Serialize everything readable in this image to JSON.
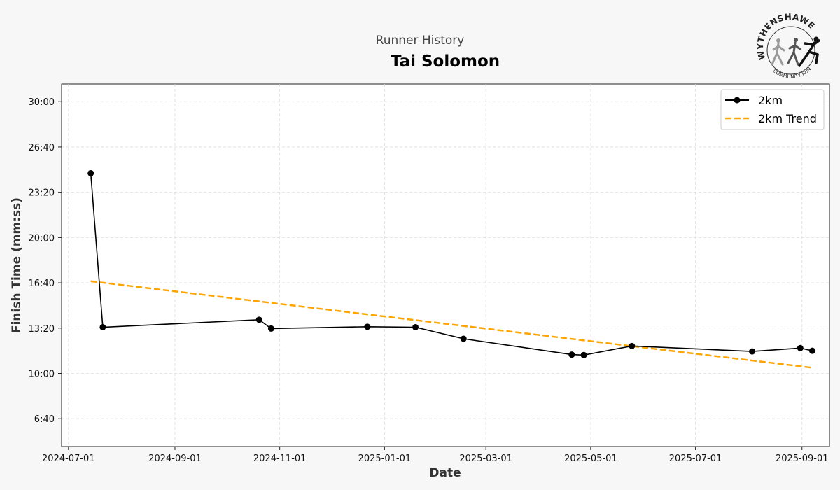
{
  "suptitle": "Runner History",
  "title": "Tai Solomon",
  "logo": {
    "name": "WYTHENSHAWE",
    "subtitle": "COMMUNITY RUN"
  },
  "chart_data": {
    "type": "line",
    "xlabel": "Date",
    "ylabel": "Finish Time (mm:ss)",
    "x_ticks": [
      "2024-07-01",
      "2024-09-01",
      "2024-11-01",
      "2025-01-01",
      "2025-03-01",
      "2025-05-01",
      "2025-07-01",
      "2025-09-01"
    ],
    "y_ticks": [
      "6:40",
      "10:00",
      "13:20",
      "16:40",
      "20:00",
      "23:20",
      "26:40",
      "30:00"
    ],
    "xlim": [
      "2024-06-27",
      "2025-09-17"
    ],
    "ylim": [
      "4:37",
      "31:18"
    ],
    "grid": true,
    "legend_position": "top-right",
    "series": [
      {
        "name": "2km",
        "color": "#000000",
        "style": "solid",
        "marker": "circle",
        "points": [
          {
            "x": "2024-07-14",
            "y": "24:44"
          },
          {
            "x": "2024-07-21",
            "y": "13:24"
          },
          {
            "x": "2024-10-20",
            "y": "13:57"
          },
          {
            "x": "2024-10-27",
            "y": "13:18"
          },
          {
            "x": "2024-12-22",
            "y": "13:26"
          },
          {
            "x": "2025-01-19",
            "y": "13:24"
          },
          {
            "x": "2025-02-16",
            "y": "12:33"
          },
          {
            "x": "2025-04-20",
            "y": "11:23"
          },
          {
            "x": "2025-04-27",
            "y": "11:21"
          },
          {
            "x": "2025-05-25",
            "y": "12:01"
          },
          {
            "x": "2025-08-03",
            "y": "11:37"
          },
          {
            "x": "2025-08-31",
            "y": "11:52"
          },
          {
            "x": "2025-09-07",
            "y": "11:40"
          }
        ]
      },
      {
        "name": "2km Trend",
        "color": "#FFA500",
        "style": "dashed",
        "marker": "none",
        "points": [
          {
            "x": "2024-07-14",
            "y": "16:47"
          },
          {
            "x": "2025-09-07",
            "y": "10:25"
          }
        ]
      }
    ]
  }
}
